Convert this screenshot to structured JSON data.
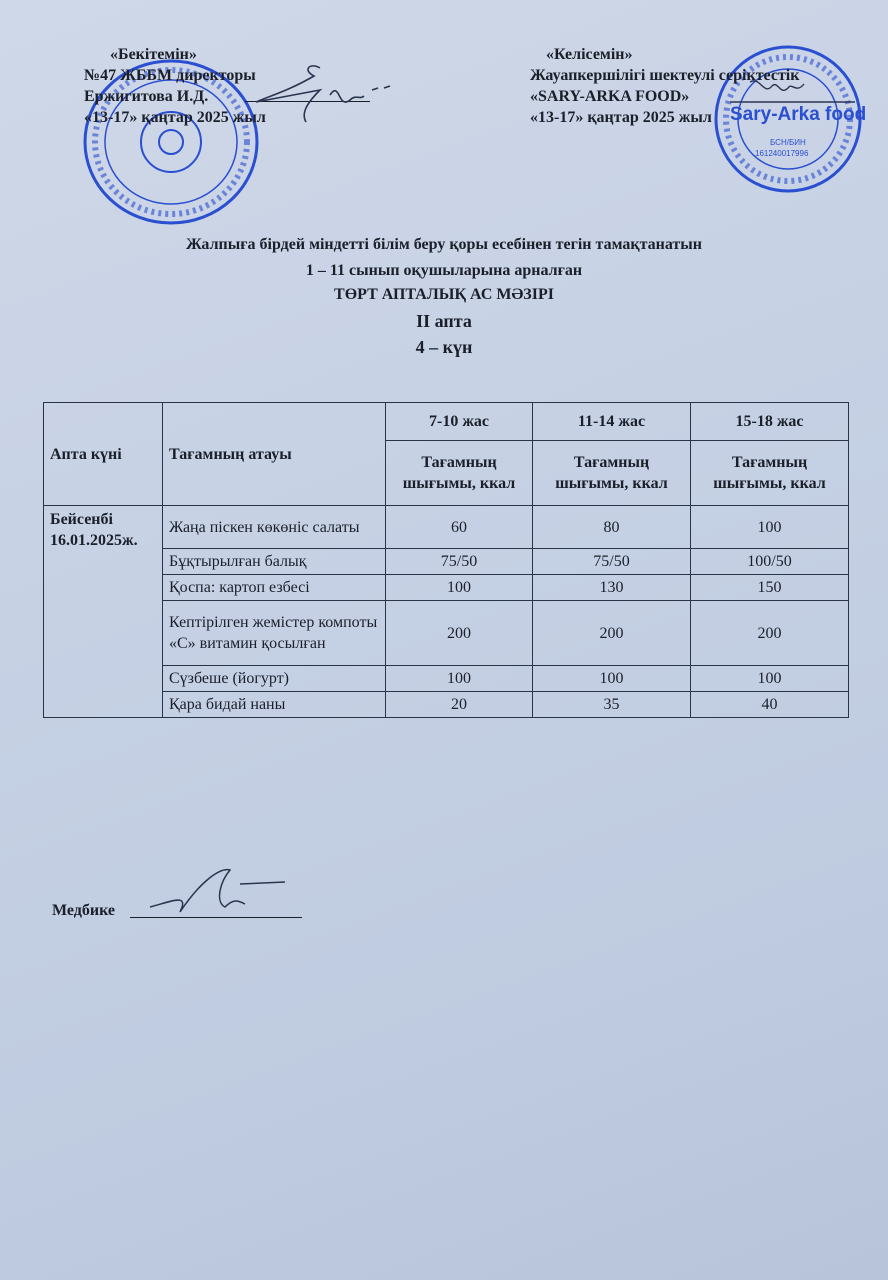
{
  "approve": {
    "heading": "«Бекітемін»",
    "line1": "№47 ЖББМ директоры",
    "line2": "Ержигитова И.Д.",
    "line3": "«13-17» қаңтар 2025 жыл"
  },
  "agree": {
    "heading": "«Келісемін»",
    "line1": "Жауапкершілігі шектеулі серіктестік",
    "line2": "«SARY-ARKA FOOD»",
    "line3": "«13-17» қаңтар 2025 жыл"
  },
  "stamp_right": {
    "logo_text": "Sary-Arka food",
    "bin_label": "БСН/БИН",
    "bin": "161240017996"
  },
  "title": {
    "line1": "Жалпыға бірдей міндетті білім беру қоры есебінен тегін тамақтанатын",
    "line2": "1 – 11 сынып оқушыларына арналған",
    "line3": "ТӨРТ АПТАЛЫҚ АС МӘЗІРІ",
    "line4": "II апта",
    "line5": "4 – күн"
  },
  "table": {
    "col_day": "Апта күні",
    "col_name": "Тағамның атауы",
    "age_groups": [
      "7-10 жас",
      "11-14 жас",
      "15-18 жас"
    ],
    "sub_header": "Тағамның шығымы, ккал",
    "day": "Бейсенбі 16.01.2025ж.",
    "rows": [
      {
        "name": "Жаңа піскен көкөніс салаты",
        "values": [
          "60",
          "80",
          "100"
        ]
      },
      {
        "name": "Бұқтырылған балық",
        "values": [
          "75/50",
          "75/50",
          "100/50"
        ]
      },
      {
        "name": "Қоспа: картоп езбесі",
        "values": [
          "100",
          "130",
          "150"
        ]
      },
      {
        "name": "Кептірілген жемістер компоты «С» витамин қосылған",
        "values": [
          "200",
          "200",
          "200"
        ]
      },
      {
        "name": "Сүзбеше (йогурт)",
        "values": [
          "100",
          "100",
          "100"
        ]
      },
      {
        "name": "Қара бидай наны",
        "values": [
          "20",
          "35",
          "40"
        ]
      }
    ]
  },
  "footer": {
    "nurse_label": "Медбике"
  },
  "colors": {
    "stamp_blue": "#2a4fd0",
    "ink": "#1a1f2a",
    "signature": "#2b3550"
  }
}
